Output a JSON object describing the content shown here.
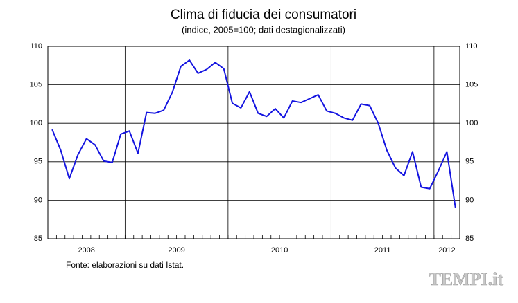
{
  "chart_data": {
    "type": "line",
    "title": "Clima di fiducia dei consumatori",
    "subtitle": "(indice, 2005=100; dati destagionalizzati)",
    "categories": [
      "2008",
      "2008",
      "2008",
      "2008",
      "2008",
      "2008",
      "2008",
      "2008",
      "2008",
      "2009",
      "2009",
      "2009",
      "2009",
      "2009",
      "2009",
      "2009",
      "2009",
      "2009",
      "2009",
      "2009",
      "2009",
      "2010",
      "2010",
      "2010",
      "2010",
      "2010",
      "2010",
      "2010",
      "2010",
      "2010",
      "2010",
      "2010",
      "2010",
      "2011",
      "2011",
      "2011",
      "2011",
      "2011",
      "2011",
      "2011",
      "2011",
      "2011",
      "2011",
      "2011",
      "2011",
      "2012",
      "2012",
      "2012"
    ],
    "series": [
      {
        "name": "Clima di fiducia dei consumatori",
        "color": "#1414e0",
        "values": [
          99.2,
          96.5,
          92.8,
          95.9,
          98.0,
          97.2,
          95.1,
          94.9,
          98.6,
          99.0,
          96.1,
          101.4,
          101.3,
          101.7,
          104.0,
          107.4,
          108.2,
          106.5,
          107.0,
          107.9,
          107.1,
          102.6,
          102.0,
          104.1,
          101.3,
          100.9,
          101.9,
          100.7,
          102.9,
          102.7,
          103.2,
          103.7,
          101.6,
          101.3,
          100.7,
          100.4,
          102.5,
          102.3,
          100.0,
          96.5,
          94.2,
          93.2,
          96.3,
          91.7,
          91.5,
          93.8,
          96.3,
          89.0
        ]
      }
    ],
    "ylim": [
      85,
      110
    ],
    "yticks": [
      85,
      90,
      95,
      100,
      105,
      110
    ],
    "grid": true,
    "source": "Fonte: elaborazioni su dati Istat.",
    "watermark": "TEMPI.it"
  }
}
